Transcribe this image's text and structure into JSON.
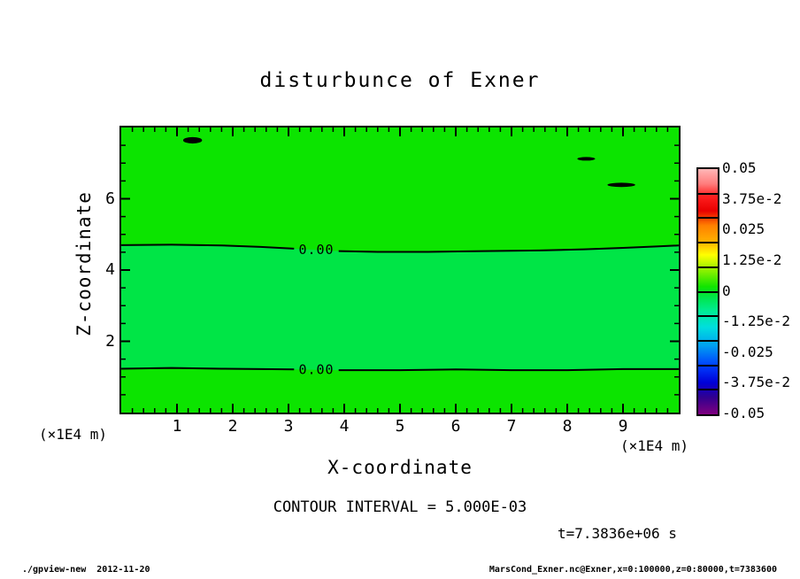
{
  "title": "disturbunce of Exner",
  "annotations": {
    "contour_interval": "CONTOUR INTERVAL = 5.000E-03",
    "time": "t=7.3836e+06 s"
  },
  "footer": {
    "left": "./gpview-new  2012-11-20",
    "right": "MarsCond_Exner.nc@Exner,x=0:100000,z=0:80000,t=7383600"
  },
  "chart_data": {
    "type": "heatmap",
    "subtype": "filled-contour",
    "title": "disturbunce of Exner",
    "xlabel": "X-coordinate",
    "ylabel": "Z-coordinate",
    "x_unit": "(×1E4 m)",
    "y_unit": "(×1E4 m)",
    "xlim": [
      0,
      10
    ],
    "ylim": [
      0,
      8
    ],
    "x_major_ticks": [
      1,
      2,
      3,
      4,
      5,
      6,
      7,
      8,
      9
    ],
    "x_minor_step": 0.2,
    "y_major_ticks": [
      2,
      4,
      6
    ],
    "y_minor_step": 0.5,
    "contour_interval": 0.005,
    "grid": false,
    "contours": {
      "zero_upper": {
        "level_label": "0.00",
        "label_x": 3.5,
        "label_z": 4.57,
        "points_left": [
          [
            0,
            4.7
          ],
          [
            0.9,
            4.71
          ],
          [
            1.8,
            4.69
          ],
          [
            2.5,
            4.65
          ],
          [
            3.1,
            4.6
          ]
        ],
        "points_right": [
          [
            3.9,
            4.53
          ],
          [
            4.6,
            4.51
          ],
          [
            5.5,
            4.51
          ],
          [
            6.5,
            4.53
          ],
          [
            7.5,
            4.55
          ],
          [
            8.3,
            4.58
          ],
          [
            9.0,
            4.62
          ],
          [
            9.6,
            4.66
          ],
          [
            10,
            4.69
          ]
        ]
      },
      "zero_lower": {
        "level_label": "0.00",
        "label_x": 3.5,
        "label_z": 1.21,
        "points_left": [
          [
            0,
            1.23
          ],
          [
            0.9,
            1.25
          ],
          [
            1.8,
            1.23
          ],
          [
            2.5,
            1.22
          ],
          [
            3.1,
            1.21
          ]
        ],
        "points_right": [
          [
            3.9,
            1.19
          ],
          [
            5.0,
            1.19
          ],
          [
            6.0,
            1.21
          ],
          [
            7.0,
            1.19
          ],
          [
            8.0,
            1.19
          ],
          [
            9.0,
            1.22
          ],
          [
            10,
            1.22
          ]
        ]
      }
    },
    "closed_contour_blobs": [
      {
        "cx": 1.28,
        "cz": 7.64,
        "rx": 0.17,
        "rz": 0.09
      },
      {
        "cx": 8.34,
        "cz": 7.12,
        "rx": 0.16,
        "rz": 0.05
      },
      {
        "cx": 8.97,
        "cz": 6.39,
        "rx": 0.25,
        "rz": 0.06
      }
    ],
    "colorbar": {
      "labels": [
        "0.05",
        "3.75e-2",
        "0.025",
        "1.25e-2",
        "0",
        "-1.25e-2",
        "-0.025",
        "-3.75e-2",
        "-0.05"
      ],
      "vmin": -0.05,
      "vmax": 0.05,
      "segments": 10
    },
    "colors": {
      "positive_fill": "#0ce400",
      "negative_fill": "#00e546",
      "contour_line": "#000000",
      "frame": "#000000",
      "background": "#ffffff",
      "colorbar_stops": [
        {
          "pos": 0.0,
          "color": "#ffb6b6"
        },
        {
          "pos": 0.06,
          "color": "#ff7d7d"
        },
        {
          "pos": 0.11,
          "color": "#ff2020"
        },
        {
          "pos": 0.17,
          "color": "#e80000"
        },
        {
          "pos": 0.23,
          "color": "#ff8000"
        },
        {
          "pos": 0.3,
          "color": "#ffb400"
        },
        {
          "pos": 0.35,
          "color": "#ffff00"
        },
        {
          "pos": 0.42,
          "color": "#80f000"
        },
        {
          "pos": 0.48,
          "color": "#10e400"
        },
        {
          "pos": 0.52,
          "color": "#00e546"
        },
        {
          "pos": 0.58,
          "color": "#00ec96"
        },
        {
          "pos": 0.645,
          "color": "#00dede"
        },
        {
          "pos": 0.72,
          "color": "#00a0f0"
        },
        {
          "pos": 0.8,
          "color": "#0040ff"
        },
        {
          "pos": 0.87,
          "color": "#0000d8"
        },
        {
          "pos": 0.93,
          "color": "#300090"
        },
        {
          "pos": 1.0,
          "color": "#800080"
        }
      ]
    }
  }
}
